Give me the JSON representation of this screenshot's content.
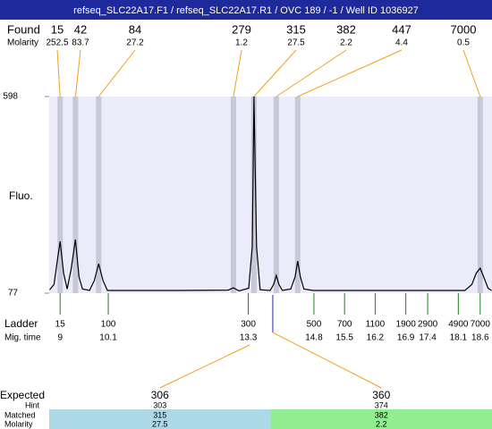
{
  "header": {
    "title": "refseq_SLC22A17.F1 / refseq_SLC22A17.R1 / OVC 189 / -1 / Well ID 1036927"
  },
  "chart_data": {
    "type": "electropherogram",
    "found_label": "Found",
    "molarity_label": "Molarity",
    "y_label": "Fluo.",
    "ylim": [
      77,
      598
    ],
    "yticks": [
      77,
      598
    ],
    "xlim": [
      8.75,
      18.87
    ],
    "found": {
      "sizes": [
        15,
        42,
        84,
        279,
        315,
        382,
        447,
        7000
      ],
      "molarity": [
        252.5,
        83.7,
        27.2,
        1.2,
        27.5,
        2.2,
        4.4,
        0.5
      ],
      "times": [
        9.0,
        9.35,
        9.88,
        12.96,
        13.43,
        13.94,
        14.43,
        18.6
      ],
      "color": "#f0a020"
    },
    "trace": {
      "x": [
        8.76,
        8.86,
        8.92,
        9.0,
        9.08,
        9.16,
        9.25,
        9.35,
        9.43,
        9.51,
        9.67,
        9.78,
        9.88,
        9.98,
        10.08,
        11.72,
        12.84,
        12.96,
        13.09,
        13.31,
        13.39,
        13.43,
        13.49,
        13.57,
        13.8,
        13.88,
        13.94,
        14.0,
        14.08,
        14.27,
        14.37,
        14.43,
        14.49,
        14.57,
        14.78,
        16.82,
        18.25,
        18.41,
        18.51,
        18.6,
        18.68,
        18.78,
        18.86
      ],
      "y": [
        86,
        100,
        150,
        214,
        130,
        88,
        140,
        219,
        120,
        88,
        84,
        110,
        155,
        110,
        84,
        84,
        85,
        91,
        83,
        90,
        200,
        598,
        200,
        86,
        84,
        100,
        124,
        100,
        84,
        88,
        120,
        162,
        120,
        88,
        84,
        84,
        84,
        100,
        130,
        143,
        120,
        90,
        84
      ],
      "color": "#000000"
    },
    "ladder": {
      "label": "Ladder",
      "time_label": "Mig. time",
      "sizes": [
        15,
        100,
        300,
        500,
        700,
        1100,
        1900,
        2900,
        4900,
        7000
      ],
      "times": [
        9,
        10.1,
        13.3,
        14.8,
        15.5,
        16.2,
        16.9,
        17.4,
        18.1,
        18.6
      ],
      "color": "#208020"
    },
    "expected": {
      "labels": {
        "expected": "Expected",
        "hint": "Hint",
        "matched": "Matched",
        "molarity": "Molarity"
      },
      "items": [
        {
          "expected": 306,
          "hint": 303,
          "matched": 315,
          "molarity": 27.5,
          "time": 13.33,
          "color": "#add8e6"
        },
        {
          "expected": 360,
          "hint": 374,
          "matched": 382,
          "molarity": 2.2,
          "time": 13.86,
          "color": "#90ee90"
        }
      ],
      "marker_color": "#2020c0"
    }
  }
}
